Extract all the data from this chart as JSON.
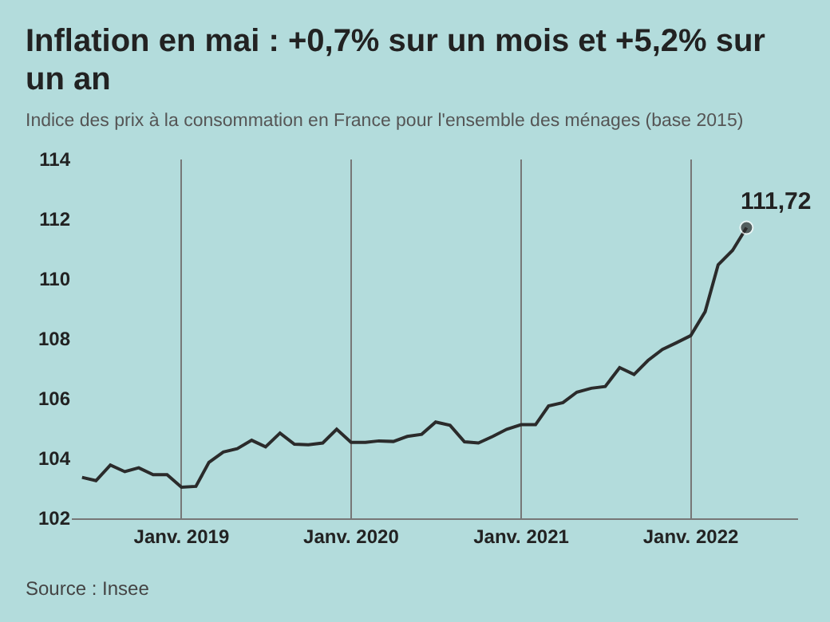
{
  "chart_data": {
    "type": "line",
    "title": "Inflation en mai : +0,7% sur un mois et +5,2% sur un an",
    "subtitle": "Indice des prix à la consommation en France pour l'ensemble des ménages (base 2015)",
    "x": [
      "2018-06",
      "2018-07",
      "2018-08",
      "2018-09",
      "2018-10",
      "2018-11",
      "2018-12",
      "2019-01",
      "2019-02",
      "2019-03",
      "2019-04",
      "2019-05",
      "2019-06",
      "2019-07",
      "2019-08",
      "2019-09",
      "2019-10",
      "2019-11",
      "2019-12",
      "2020-01",
      "2020-02",
      "2020-03",
      "2020-04",
      "2020-05",
      "2020-06",
      "2020-07",
      "2020-08",
      "2020-09",
      "2020-10",
      "2020-11",
      "2020-12",
      "2021-01",
      "2021-02",
      "2021-03",
      "2021-04",
      "2021-05",
      "2021-06",
      "2021-07",
      "2021-08",
      "2021-09",
      "2021-10",
      "2021-11",
      "2021-12",
      "2022-01",
      "2022-02",
      "2022-03",
      "2022-04",
      "2022-05"
    ],
    "series": [
      {
        "color": "#2b2b2b",
        "values": [
          103.37,
          103.26,
          103.78,
          103.56,
          103.69,
          103.46,
          103.46,
          103.04,
          103.07,
          103.87,
          104.22,
          104.33,
          104.61,
          104.39,
          104.85,
          104.48,
          104.46,
          104.52,
          104.98,
          104.54,
          104.54,
          104.59,
          104.57,
          104.74,
          104.81,
          105.22,
          105.11,
          104.56,
          104.52,
          104.74,
          104.98,
          105.13,
          105.13,
          105.76,
          105.87,
          106.22,
          106.35,
          106.41,
          107.04,
          106.81,
          107.28,
          107.65,
          107.87,
          108.11,
          108.91,
          110.48,
          110.96,
          111.72
        ]
      }
    ],
    "xticks": [
      {
        "value": "2019-01",
        "label": "Janv. 2019"
      },
      {
        "value": "2020-01",
        "label": "Janv. 2020"
      },
      {
        "value": "2021-01",
        "label": "Janv. 2021"
      },
      {
        "value": "2022-01",
        "label": "Janv. 2022"
      }
    ],
    "ylim": [
      102,
      114
    ],
    "yticks": [
      102,
      104,
      106,
      108,
      110,
      112,
      114
    ],
    "grid": "x",
    "marker": "none",
    "line_style": "solid",
    "xlim": [
      "2018-05-10",
      "2022-08-20"
    ],
    "annotations": [
      {
        "text": "111,72",
        "x": "2022-05",
        "y": 111.72
      },
      "Source : Insee"
    ]
  }
}
